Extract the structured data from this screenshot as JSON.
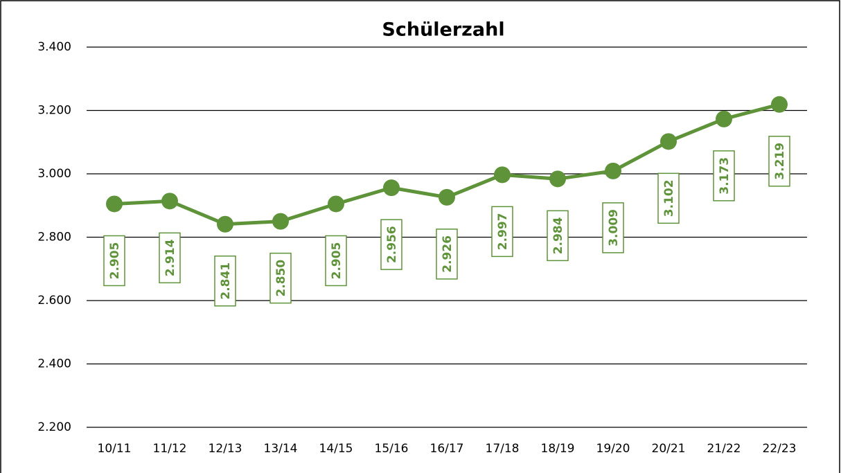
{
  "chart_data": {
    "type": "line",
    "title": "Schülerzahl",
    "categories": [
      "10/11",
      "11/12",
      "12/13",
      "13/14",
      "14/15",
      "15/16",
      "16/17",
      "17/18",
      "18/19",
      "19/20",
      "20/21",
      "21/22",
      "22/23"
    ],
    "series": [
      {
        "name": "Schülerzahl",
        "color": "#5e9339",
        "values": [
          2905,
          2914,
          2841,
          2850,
          2905,
          2956,
          2926,
          2997,
          2984,
          3009,
          3102,
          3173,
          3219
        ],
        "value_labels": [
          "2.905",
          "2.914",
          "2.841",
          "2.850",
          "2.905",
          "2.956",
          "2.926",
          "2.997",
          "2.984",
          "3.009",
          "3.102",
          "3.173",
          "3.219"
        ]
      }
    ],
    "ylim": [
      2200,
      3400
    ],
    "yticks": [
      {
        "value": 2200,
        "label": "2.200"
      },
      {
        "value": 2400,
        "label": "2.400"
      },
      {
        "value": 2600,
        "label": "2.600"
      },
      {
        "value": 2800,
        "label": "2.800"
      },
      {
        "value": 3000,
        "label": "3.000"
      },
      {
        "value": 3200,
        "label": "3.200"
      },
      {
        "value": 3400,
        "label": "3.400"
      }
    ],
    "grid": true
  }
}
